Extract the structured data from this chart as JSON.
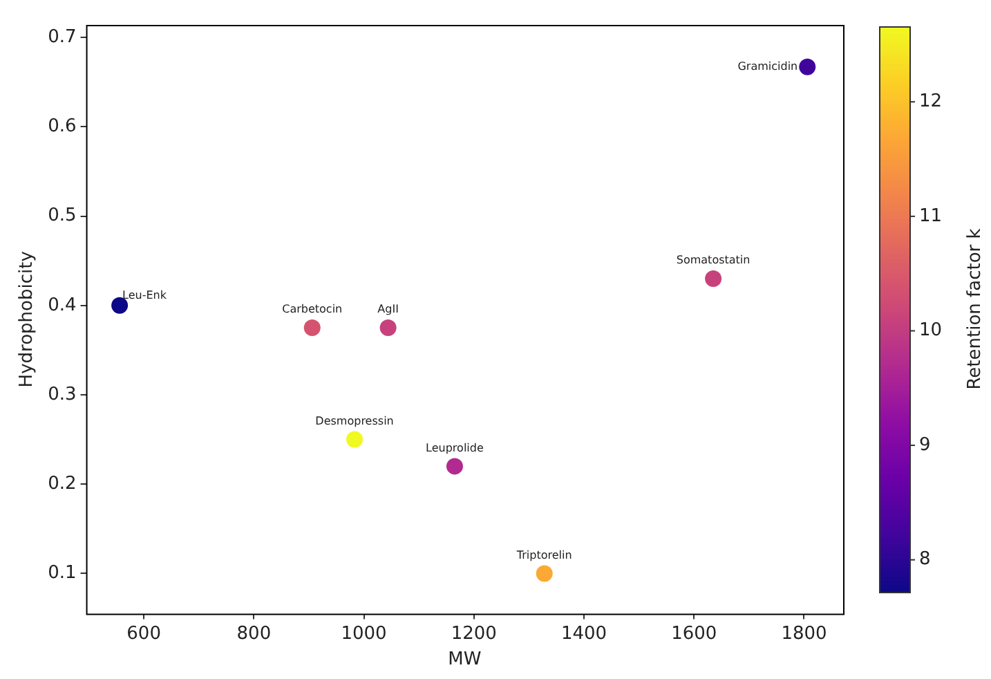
{
  "chart_data": {
    "type": "scatter",
    "xlabel": "MW",
    "ylabel": "Hydrophobicity",
    "clabel": "Retention factor k",
    "x": [
      556,
      906,
      1044,
      1635,
      1806,
      983,
      1165,
      1328
    ],
    "values": [
      0.4,
      0.375,
      0.375,
      0.43,
      0.667,
      0.25,
      0.22,
      0.1
    ],
    "cvalues": [
      7.72,
      10.4,
      10.1,
      10.1,
      8.2,
      12.66,
      9.7,
      11.7
    ],
    "clim": [
      7.72,
      12.66
    ],
    "cticks": [
      8,
      9,
      10,
      11,
      12
    ],
    "xlim": [
      495,
      1871
    ],
    "xticks": [
      600,
      800,
      1000,
      1200,
      1400,
      1600,
      1800
    ],
    "ylim": [
      0.055,
      0.714
    ],
    "yticks": [
      0.1,
      0.2,
      0.3,
      0.4,
      0.5,
      0.6,
      0.7
    ],
    "marker": "circle",
    "grid": false,
    "legend": false,
    "annotations": [
      {
        "text": "Leu-Enk",
        "x": 556,
        "y": 0.4
      },
      {
        "text": "Carbetocin",
        "x": 906,
        "y": 0.375
      },
      {
        "text": "AgII",
        "x": 1044,
        "y": 0.375
      },
      {
        "text": "Somatostatin",
        "x": 1635,
        "y": 0.43
      },
      {
        "text": "Gramicidin",
        "x": 1806,
        "y": 0.667
      },
      {
        "text": "Desmopressin",
        "x": 983,
        "y": 0.25
      },
      {
        "text": "Leuprolide",
        "x": 1165,
        "y": 0.22
      },
      {
        "text": "Triptorelin",
        "x": 1328,
        "y": 0.1
      }
    ]
  }
}
